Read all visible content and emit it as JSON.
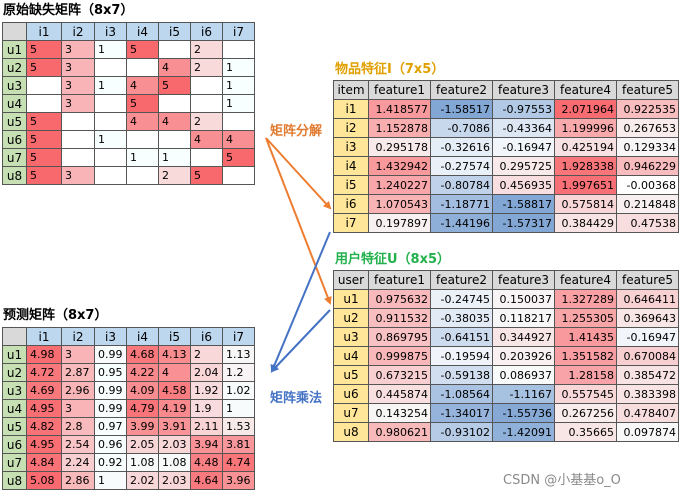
{
  "original_matrix": {
    "title": "原始缺失矩阵（8x7）",
    "columns": [
      "i1",
      "i2",
      "i3",
      "i4",
      "i5",
      "i6",
      "i7"
    ],
    "rows": [
      {
        "label": "u1",
        "cells": [
          "5",
          "3",
          "1",
          "5",
          "",
          "2",
          ""
        ]
      },
      {
        "label": "u2",
        "cells": [
          "5",
          "3",
          "",
          "",
          "4",
          "2",
          "1"
        ]
      },
      {
        "label": "u3",
        "cells": [
          "",
          "3",
          "1",
          "4",
          "5",
          "",
          "1"
        ]
      },
      {
        "label": "u4",
        "cells": [
          "",
          "3",
          "",
          "5",
          "",
          "",
          "1"
        ]
      },
      {
        "label": "u5",
        "cells": [
          "5",
          "",
          "",
          "4",
          "4",
          "2",
          ""
        ]
      },
      {
        "label": "u6",
        "cells": [
          "5",
          "",
          "1",
          "",
          "",
          "4",
          "4"
        ]
      },
      {
        "label": "u7",
        "cells": [
          "5",
          "",
          "",
          "1",
          "1",
          "",
          "5"
        ]
      },
      {
        "label": "u8",
        "cells": [
          "5",
          "3",
          "",
          "",
          "2",
          "5",
          ""
        ]
      }
    ]
  },
  "item_features": {
    "title": "物品特征I（7x5）",
    "columns": [
      "item",
      "feature1",
      "feature2",
      "feature3",
      "feature4",
      "feature5"
    ],
    "rows": [
      {
        "label": "i1",
        "cells": [
          "1.418577",
          "-1.58517",
          "-0.97553",
          "2.071964",
          "0.922535"
        ]
      },
      {
        "label": "i2",
        "cells": [
          "1.152878",
          "-0.7086",
          "-0.43364",
          "1.199996",
          "0.267653"
        ]
      },
      {
        "label": "i3",
        "cells": [
          "0.295178",
          "-0.32616",
          "-0.16947",
          "0.425194",
          "0.129334"
        ]
      },
      {
        "label": "i4",
        "cells": [
          "1.432942",
          "-0.27574",
          "0.295725",
          "1.928338",
          "0.946229"
        ]
      },
      {
        "label": "i5",
        "cells": [
          "1.240227",
          "-0.80784",
          "0.456935",
          "1.997651",
          "-0.00368"
        ]
      },
      {
        "label": "i6",
        "cells": [
          "1.070543",
          "-1.18771",
          "-1.58817",
          "0.575814",
          "0.214848"
        ]
      },
      {
        "label": "i7",
        "cells": [
          "0.197897",
          "-1.44196",
          "-1.57317",
          "0.384429",
          "0.47538"
        ]
      }
    ]
  },
  "user_features": {
    "title": "用户特征U（8x5）",
    "columns": [
      "user",
      "feature1",
      "feature2",
      "feature3",
      "feature4",
      "feature5"
    ],
    "rows": [
      {
        "label": "u1",
        "cells": [
          "0.975632",
          "-0.24745",
          "0.150037",
          "1.327289",
          "0.646411"
        ]
      },
      {
        "label": "u2",
        "cells": [
          "0.911532",
          "-0.38035",
          "0.118217",
          "1.255305",
          "0.369643"
        ]
      },
      {
        "label": "u3",
        "cells": [
          "0.869795",
          "-0.64151",
          "0.344927",
          "1.41435",
          "-0.16947"
        ]
      },
      {
        "label": "u4",
        "cells": [
          "0.999875",
          "-0.19594",
          "0.203926",
          "1.351582",
          "0.670084"
        ]
      },
      {
        "label": "u5",
        "cells": [
          "0.673215",
          "-0.59138",
          "0.086937",
          "1.28158",
          "0.385472"
        ]
      },
      {
        "label": "u6",
        "cells": [
          "0.445874",
          "-1.08564",
          "-1.1167",
          "0.557545",
          "0.383398"
        ]
      },
      {
        "label": "u7",
        "cells": [
          "0.143254",
          "-1.34017",
          "-1.55736",
          "0.267256",
          "0.478407"
        ]
      },
      {
        "label": "u8",
        "cells": [
          "0.980621",
          "-0.93102",
          "-1.42091",
          "0.35665",
          "0.097874"
        ]
      }
    ]
  },
  "predicted_matrix": {
    "title": "预测矩阵（8x7）",
    "columns": [
      "i1",
      "i2",
      "i3",
      "i4",
      "i5",
      "i6",
      "i7"
    ],
    "rows": [
      {
        "label": "u1",
        "cells": [
          "4.98",
          "3",
          "0.99",
          "4.68",
          "4.13",
          "2",
          "1.13"
        ]
      },
      {
        "label": "u2",
        "cells": [
          "4.72",
          "2.87",
          "0.95",
          "4.22",
          "4",
          "2.04",
          "1.2"
        ]
      },
      {
        "label": "u3",
        "cells": [
          "4.69",
          "2.96",
          "0.99",
          "4.09",
          "4.58",
          "1.92",
          "1.02"
        ]
      },
      {
        "label": "u4",
        "cells": [
          "4.95",
          "3",
          "0.99",
          "4.79",
          "4.19",
          "1.9",
          "1"
        ]
      },
      {
        "label": "u5",
        "cells": [
          "4.82",
          "2.8",
          "0.97",
          "3.99",
          "3.91",
          "2.11",
          "1.53"
        ]
      },
      {
        "label": "u6",
        "cells": [
          "4.95",
          "2.54",
          "0.96",
          "2.05",
          "2.03",
          "3.94",
          "3.81"
        ]
      },
      {
        "label": "u7",
        "cells": [
          "4.84",
          "2.24",
          "0.92",
          "1.08",
          "1.08",
          "4.48",
          "4.74"
        ]
      },
      {
        "label": "u8",
        "cells": [
          "5.08",
          "2.86",
          "1",
          "2.02",
          "2.03",
          "4.64",
          "3.96"
        ]
      }
    ]
  },
  "labels": {
    "decompose": "矩阵分解",
    "multiply": "矩阵乘法"
  },
  "watermark": "CSDN @小基基o_O",
  "colors": {
    "header_gray": "#d9d9d9",
    "header_blue": "#bdd7ee",
    "row_green": "#c6e0b4",
    "row_yellow": "#ffe699",
    "arrow_orange": "#ed7d31",
    "arrow_blue": "#4472c4"
  }
}
